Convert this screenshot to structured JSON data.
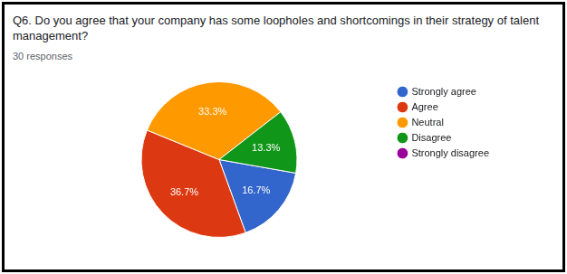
{
  "chart_data": {
    "type": "pie",
    "title": "Q6. Do you agree that your company has some loopholes and shortcomings in their strategy of talent management?",
    "subtitle": "30 responses",
    "categories": [
      "Strongly agree",
      "Agree",
      "Neutral",
      "Disagree",
      "Strongly disagree"
    ],
    "values": [
      16.7,
      36.7,
      33.3,
      13.3,
      0
    ],
    "value_labels": [
      "16.7%",
      "36.7%",
      "33.3%",
      "13.3%",
      null
    ],
    "colors": [
      "#3366cc",
      "#dc3912",
      "#ff9900",
      "#109618",
      "#990099"
    ],
    "data_labels": true,
    "legend": "right"
  }
}
